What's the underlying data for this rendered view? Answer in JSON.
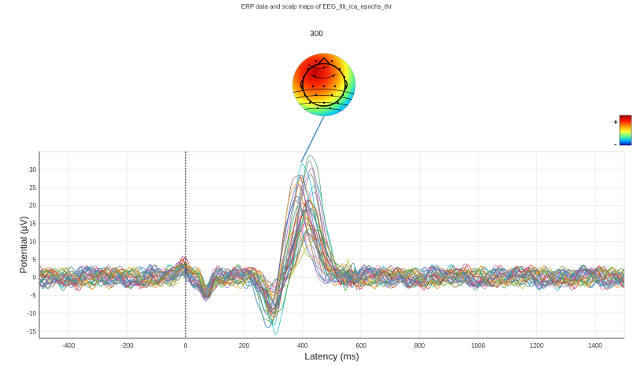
{
  "figure": {
    "title": "ERP data and scalp maps of EEG_filt_ica_epochs_thr",
    "map_latency_label": "300"
  },
  "colorbar": {
    "plus_label": "+",
    "minus_label": "-"
  },
  "chart_data": {
    "type": "line",
    "xlabel": "Latency (ms)",
    "ylabel": "Potential (µV)",
    "xlim": [
      -500,
      1500
    ],
    "ylim": [
      -17,
      35
    ],
    "x_ticks": [
      -400,
      -200,
      0,
      200,
      400,
      600,
      800,
      1000,
      1200,
      1400
    ],
    "y_ticks": [
      -15,
      -10,
      -5,
      0,
      5,
      10,
      15,
      20,
      25,
      30
    ],
    "event_marker_x": 0,
    "scalp_map_latency": 300,
    "channel_count": 32,
    "grid": true,
    "channel_peaks": {
      "negative_peak_latency_ms": 340,
      "negative_peak_min_uV": -16,
      "positive_peak_latency_ms": 400,
      "positive_peak_max_uV": 33
    }
  }
}
